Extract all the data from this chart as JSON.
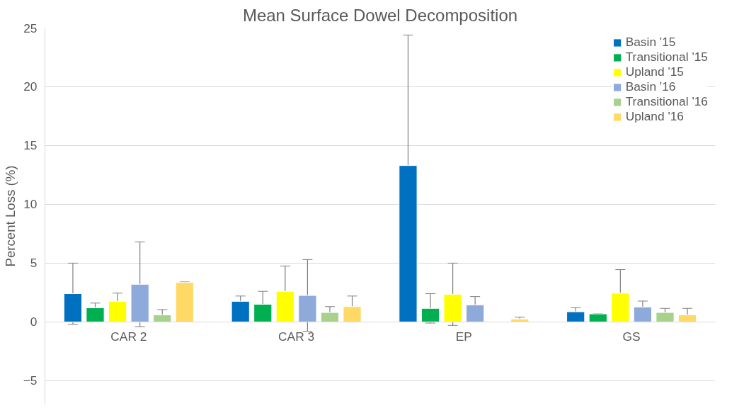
{
  "chart_data": {
    "type": "bar",
    "title": "Mean Surface Dowel Decomposition",
    "ylabel": "Percent Loss (%)",
    "categories": [
      "CAR 2",
      "CAR 3",
      "EP",
      "GS"
    ],
    "series": [
      {
        "name": "Basin '15",
        "color": "#0070c0",
        "values": [
          2.4,
          1.75,
          13.3,
          0.86
        ],
        "errors": [
          2.6,
          0.45,
          11.1,
          0.35
        ]
      },
      {
        "name": "Transitional '15",
        "color": "#00b050",
        "values": [
          1.2,
          1.5,
          1.15,
          0.68
        ],
        "errors": [
          0.4,
          1.1,
          1.25,
          0
        ]
      },
      {
        "name": "Upland '15",
        "color": "#ffff00",
        "values": [
          1.75,
          2.6,
          2.35,
          2.45
        ],
        "errors": [
          0.7,
          2.15,
          2.65,
          2.0
        ]
      },
      {
        "name": "Basin '16",
        "color": "#8eaadb",
        "values": [
          3.2,
          2.25,
          1.45,
          1.27
        ],
        "errors": [
          3.6,
          3.05,
          0.7,
          0.5
        ]
      },
      {
        "name": "Transitional '16",
        "color": "#a9d18e",
        "values": [
          0.6,
          0.8,
          null,
          0.8
        ],
        "errors": [
          0.45,
          0.5,
          null,
          0.35
        ]
      },
      {
        "name": "Upland '16",
        "color": "#ffd966",
        "values": [
          3.35,
          1.3,
          0.25,
          0.6
        ],
        "errors": [
          0.05,
          0.9,
          0.15,
          0.55
        ]
      }
    ],
    "ylim": [
      -7,
      25
    ],
    "yticks": [
      -5,
      0,
      5,
      10,
      15,
      20,
      25
    ],
    "grid": "y",
    "legend": "top right"
  }
}
